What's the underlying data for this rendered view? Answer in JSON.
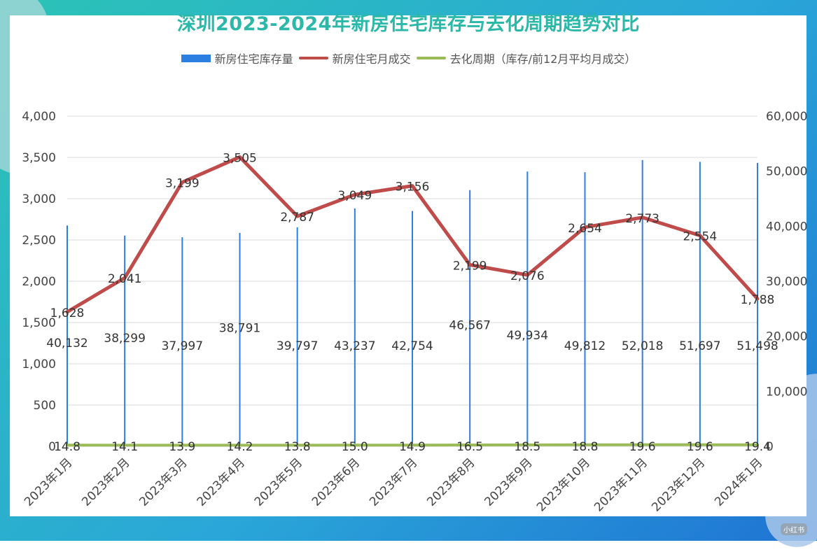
{
  "chart_data": {
    "type": "bar+line",
    "title": "深圳2023-2024年新房住宅库存与去化周期趋势对比",
    "categories": [
      "2023年1月",
      "2023年2月",
      "2023年3月",
      "2023年4月",
      "2023年5月",
      "2023年6月",
      "2023年7月",
      "2023年8月",
      "2023年9月",
      "2023年10月",
      "2023年11月",
      "2023年12月",
      "2024年1月"
    ],
    "series": [
      {
        "name": "新房住宅库存量",
        "type": "bar",
        "axis": "right",
        "color": "#2b7fe0",
        "values": [
          40132,
          38299,
          37997,
          38791,
          39797,
          43237,
          42754,
          46567,
          49934,
          49812,
          52018,
          51697,
          51498
        ],
        "labels": [
          "40,132",
          "38,299",
          "37,997",
          "38,791",
          "39,797",
          "43,237",
          "42,754",
          "46,567",
          "49,934",
          "49,812",
          "52,018",
          "51,697",
          "51,498"
        ]
      },
      {
        "name": "新房住宅月成交",
        "type": "line",
        "axis": "left",
        "color": "#bf4b4b",
        "values": [
          1628,
          2041,
          3199,
          3505,
          2787,
          3049,
          3156,
          2199,
          2076,
          2654,
          2773,
          2554,
          1788
        ],
        "labels": [
          "1,628",
          "2,041",
          "3,199",
          "3,505",
          "2,787",
          "3,049",
          "3,156",
          "2,199",
          "2,076",
          "2,654",
          "2,773",
          "2,554",
          "1,788"
        ]
      },
      {
        "name": "去化周期（库存/前12月平均月成交）",
        "type": "line",
        "axis": "left",
        "color": "#9bbb59",
        "values": [
          14.8,
          14.1,
          13.9,
          14.2,
          13.8,
          15.0,
          14.9,
          16.5,
          18.5,
          18.8,
          19.6,
          19.6,
          19.4
        ],
        "labels": [
          "14.8",
          "14.1",
          "13.9",
          "14.2",
          "13.8",
          "15.0",
          "14.9",
          "16.5",
          "18.5",
          "18.8",
          "19.6",
          "19.6",
          "19.4"
        ]
      }
    ],
    "left_axis": {
      "min": 0,
      "max": 4000,
      "ticks": [
        "0",
        "500",
        "1,000",
        "1,500",
        "2,000",
        "2,500",
        "3,000",
        "3,500",
        "4,000"
      ]
    },
    "right_axis": {
      "min": 0,
      "max": 60000,
      "ticks": [
        "0",
        "10,000",
        "20,000",
        "30,000",
        "40,000",
        "50,000",
        "60,000"
      ]
    },
    "grid": true,
    "legend_position": "top"
  },
  "watermark": "小红书"
}
